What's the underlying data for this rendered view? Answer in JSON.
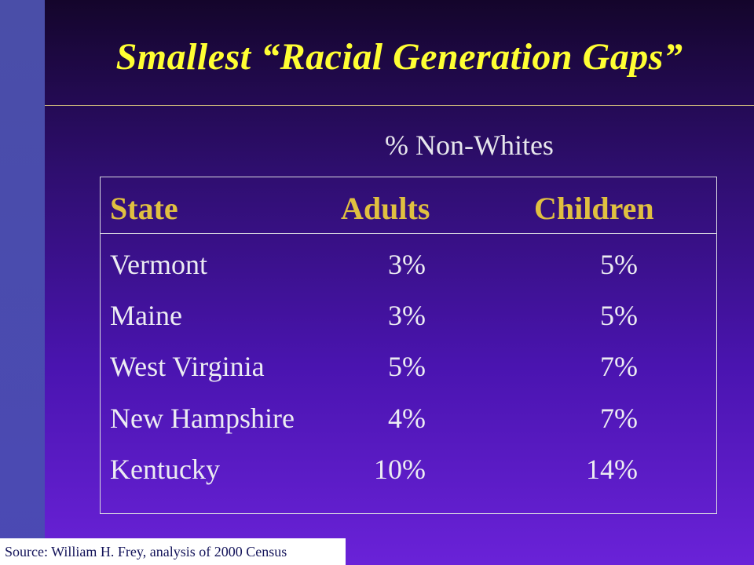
{
  "slide": {
    "title": "Smallest “Racial Generation Gaps”",
    "subtitle": "% Non-Whites",
    "source": "Source: William H. Frey, analysis of 2000 Census"
  },
  "table": {
    "headers": {
      "state": "State",
      "adults": "Adults",
      "children": "Children"
    },
    "rows": [
      {
        "state": "Vermont",
        "adults": "3%",
        "children": "5%"
      },
      {
        "state": "Maine",
        "adults": "3%",
        "children": "5%"
      },
      {
        "state": "West Virginia",
        "adults": "5%",
        "children": "7%"
      },
      {
        "state": "New Hampshire",
        "adults": "4%",
        "children": "7%"
      },
      {
        "state": "Kentucky",
        "adults": "10%",
        "children": "14%"
      }
    ]
  },
  "colors": {
    "title": "#ffff33",
    "header": "#e0c040",
    "body_text": "#ececf2",
    "sidebar": "#4a4ea8"
  }
}
